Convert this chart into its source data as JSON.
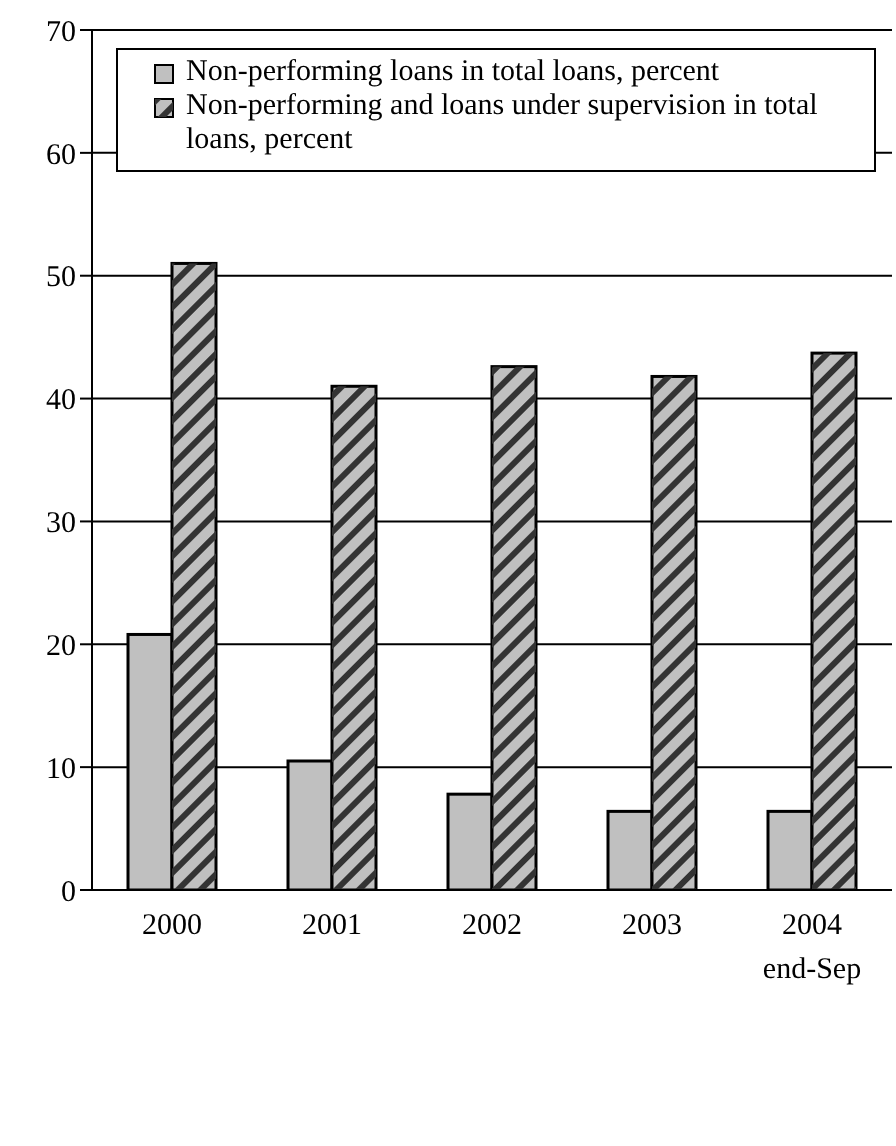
{
  "chart_data": {
    "type": "bar",
    "categories": [
      "2000",
      "2001",
      "2002",
      "2003",
      "2004\nend-Sep"
    ],
    "series": [
      {
        "name": "Non-performing loans in total loans, percent",
        "color": "#c0c0c0",
        "values": [
          20.8,
          10.5,
          7.8,
          6.4,
          6.4
        ]
      },
      {
        "name": "Non-performing and loans under supervision in total loans, percent",
        "color": "#c0c0c0",
        "values": [
          51.0,
          41.0,
          42.6,
          41.8,
          43.7
        ]
      }
    ],
    "ylim": [
      0,
      70
    ],
    "yticks": [
      0,
      10,
      20,
      30,
      40,
      50,
      60,
      70
    ],
    "grid": "y",
    "legend": "top"
  }
}
